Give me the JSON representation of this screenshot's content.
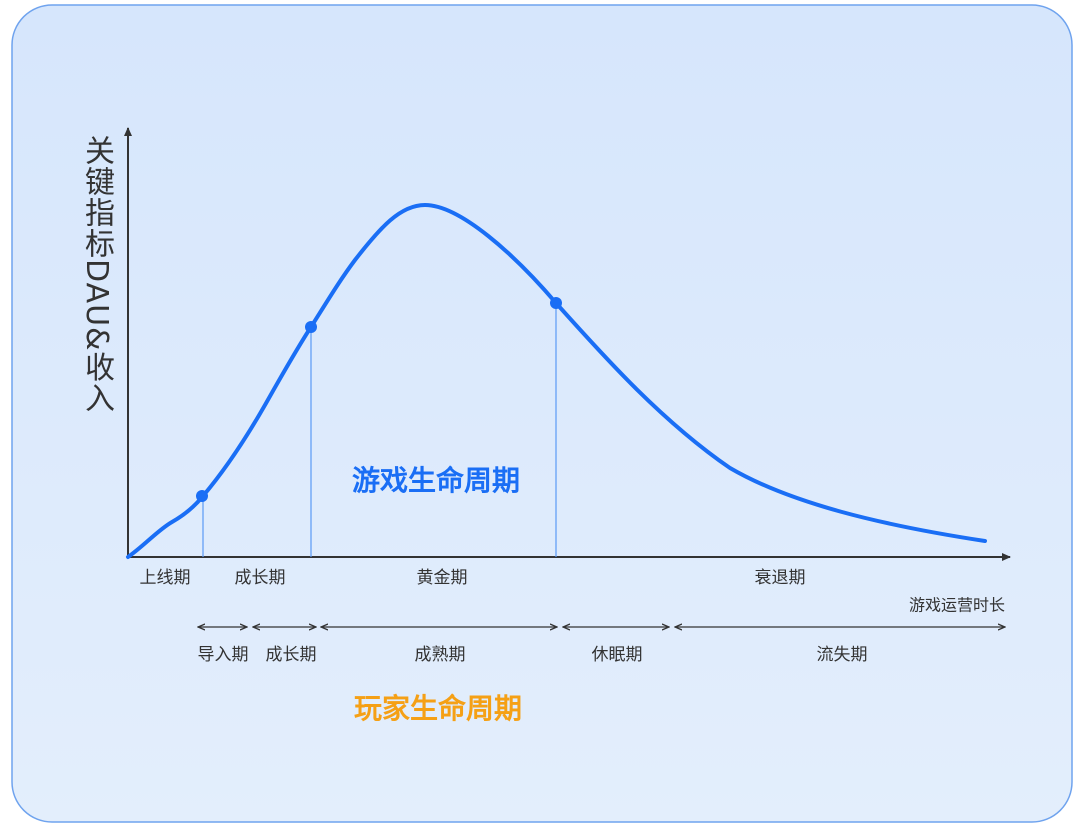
{
  "game_lifecycle": {
    "title": "游戏生命周期",
    "stages": [
      "上线期",
      "成长期",
      "黄金期",
      "衰退期"
    ]
  },
  "player_lifecycle": {
    "title": "玩家生命周期",
    "stages": [
      "导入期",
      "成长期",
      "成熟期",
      "休眠期",
      "流失期"
    ]
  },
  "y_axis_label": "关键指标DAU&收入",
  "x_axis_label": "游戏运营时长"
}
